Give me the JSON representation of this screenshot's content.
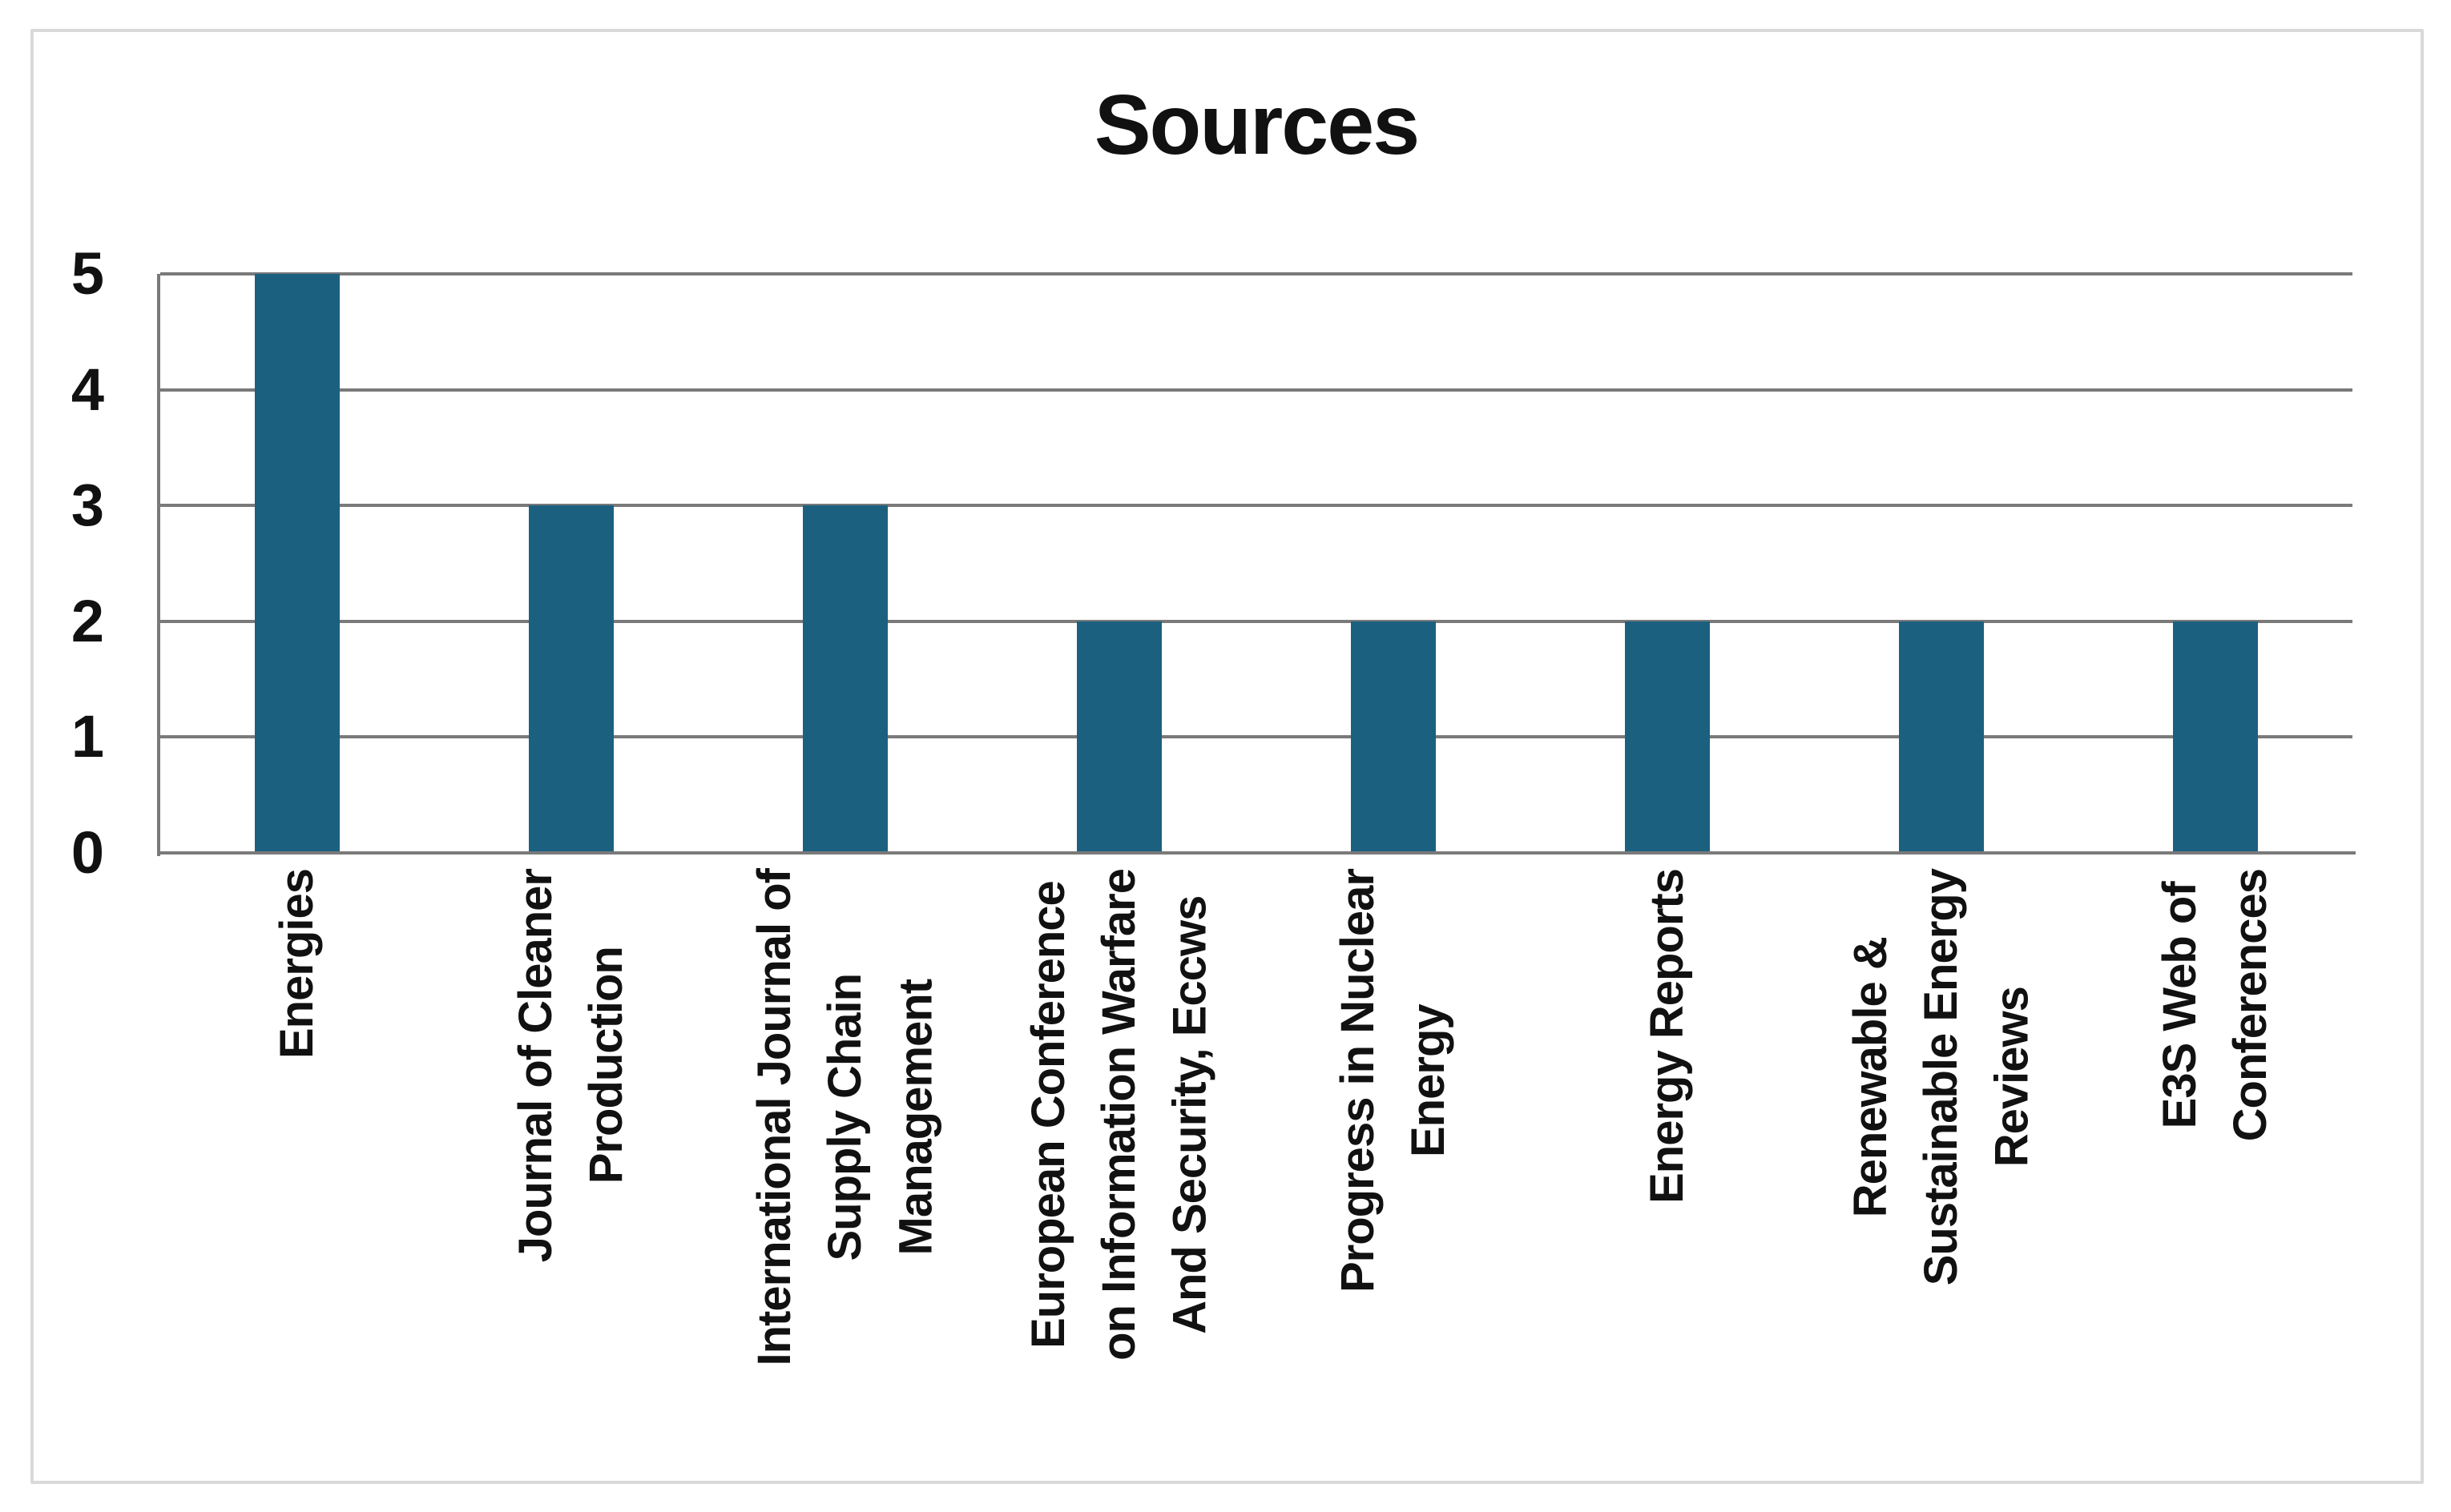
{
  "chart_data": {
    "type": "bar",
    "title": "Sources",
    "categories": [
      "Energies",
      "Journal of Cleaner Production",
      "International Journal of Supply Chain Management",
      "European Conference on Information Warfare And Security, Eccws",
      "Progress in Nuclear Energy",
      "Energy Reports",
      "Renewable & Sustainable Energy Reviews",
      "E3S Web of Conferences"
    ],
    "category_lines": [
      [
        "Energies"
      ],
      [
        "Journal of Cleaner",
        "Production"
      ],
      [
        "International Journal of",
        "Supply Chain",
        "Management"
      ],
      [
        "European Conference",
        "on Information Warfare",
        "And Security, Eccws"
      ],
      [
        "Progress in Nuclear",
        "Energy"
      ],
      [
        "Energy Reports"
      ],
      [
        "Renewable &",
        "Sustainable Energy",
        "Reviews"
      ],
      [
        "E3S Web of",
        "Conferences"
      ]
    ],
    "values": [
      5,
      3,
      3,
      2,
      2,
      2,
      2,
      2
    ],
    "xlabel": "",
    "ylabel": "",
    "ylim": [
      0,
      5
    ],
    "yticks": [
      0,
      1,
      2,
      3,
      4,
      5
    ],
    "grid": true,
    "legend": false,
    "colors": {
      "bar": "#1C6080",
      "gridline": "#7A7A7A",
      "axis": "#7A7A7A",
      "text": "#111111",
      "figure_border": "#D9D9D9",
      "background": "#FFFFFF"
    }
  }
}
